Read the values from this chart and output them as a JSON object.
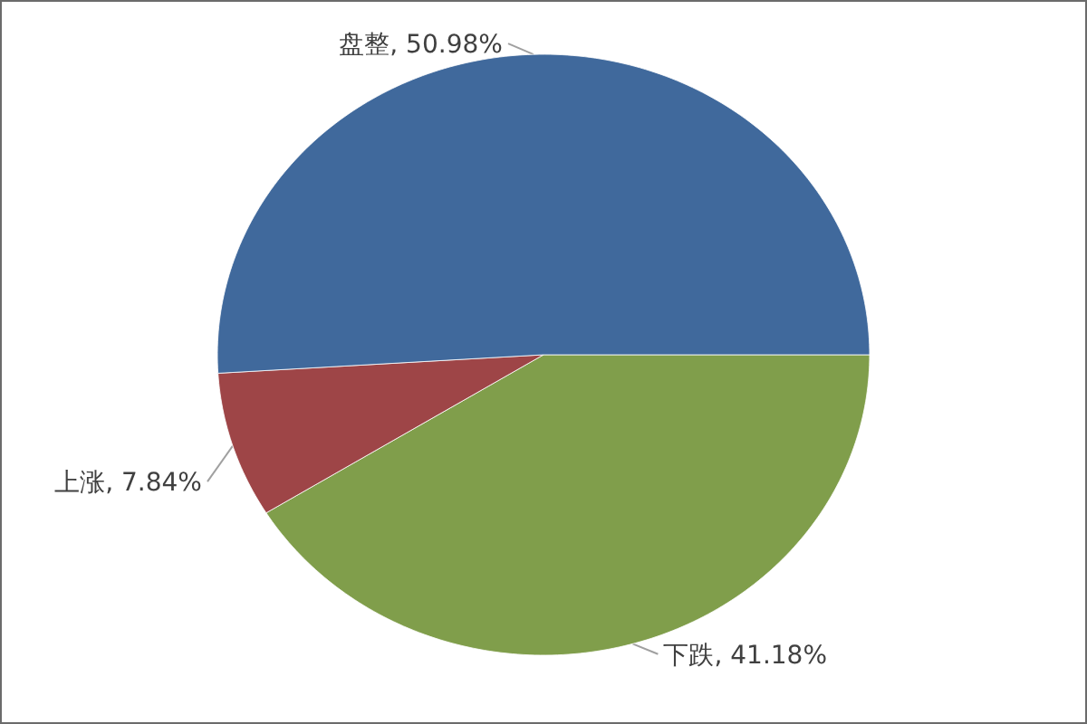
{
  "chart_data": {
    "type": "pie",
    "categories": [
      "下跌",
      "上涨",
      "盘整"
    ],
    "values": [
      41.18,
      7.84,
      50.98
    ],
    "value_labels": [
      "41.18%",
      "7.84%",
      "50.98%"
    ],
    "colors": [
      "#809e4b",
      "#9e4547",
      "#40699c"
    ]
  }
}
